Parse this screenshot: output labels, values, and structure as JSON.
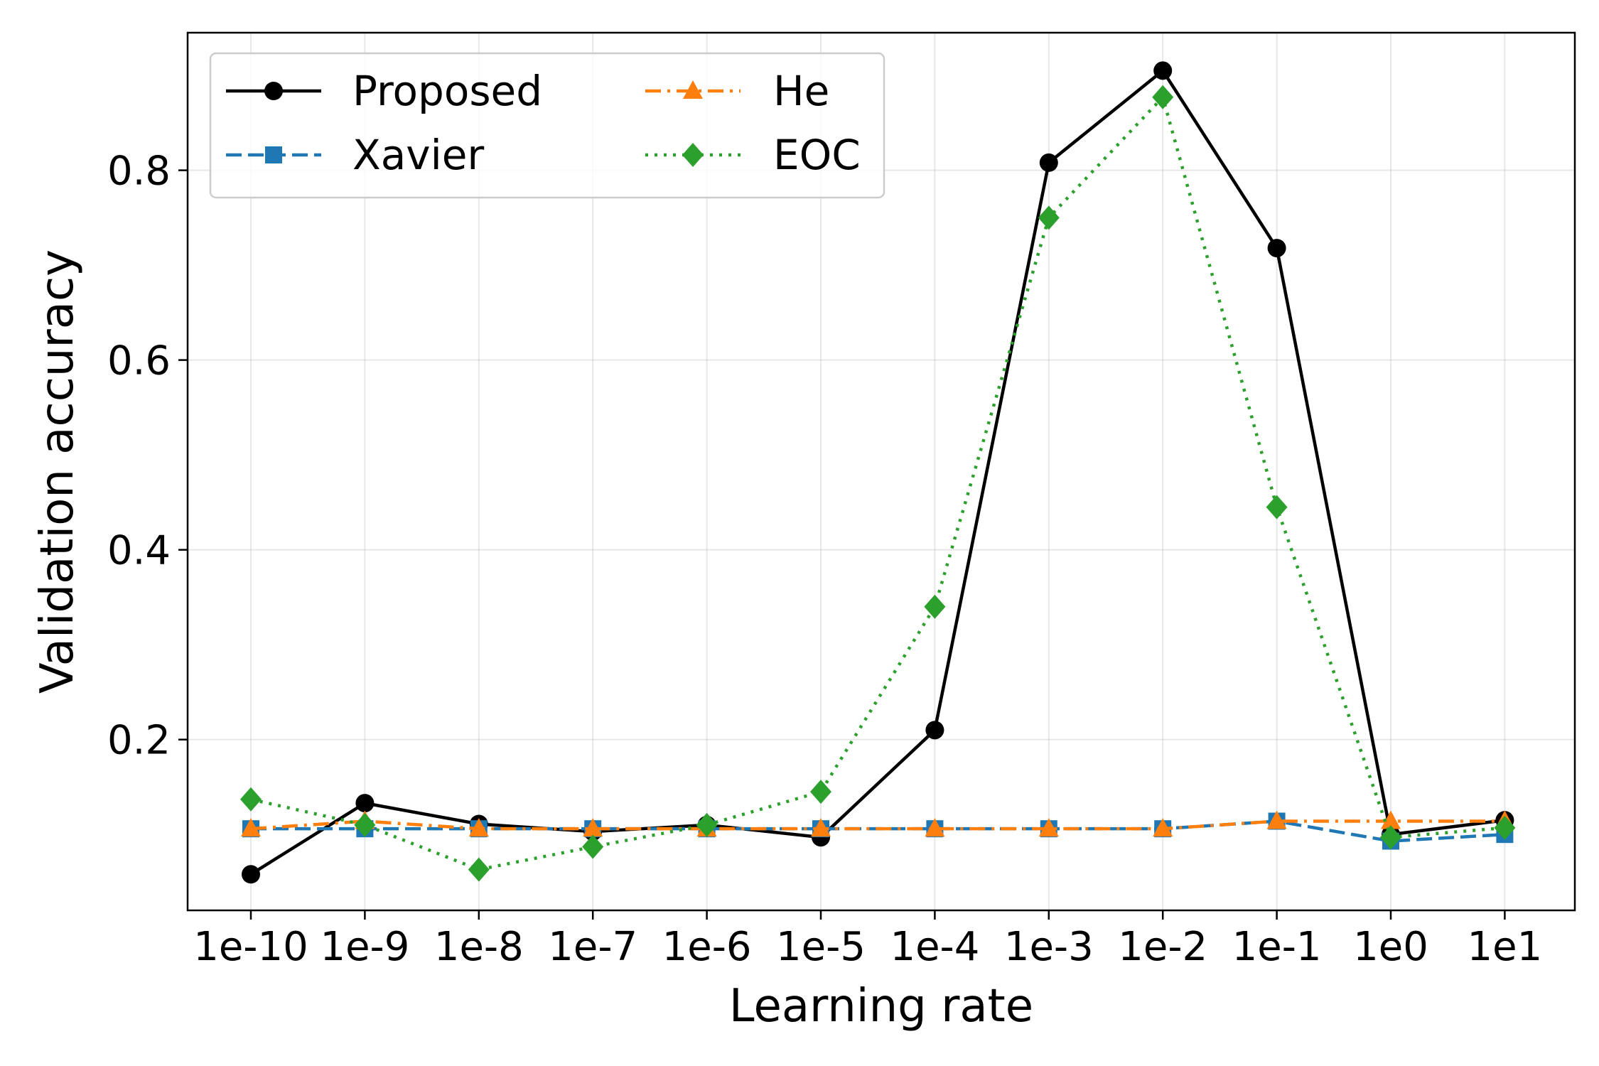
{
  "chart_data": {
    "type": "line",
    "xlabel": "Learning rate",
    "ylabel": "Validation accuracy",
    "categories": [
      "1e-10",
      "1e-9",
      "1e-8",
      "1e-7",
      "1e-6",
      "1e-5",
      "1e-4",
      "1e-3",
      "1e-2",
      "1e-1",
      "1e0",
      "1e1"
    ],
    "ylim": [
      0.02,
      0.945
    ],
    "yticks": [
      0.2,
      0.4,
      0.6,
      0.8
    ],
    "ytick_labels": [
      "0.2",
      "0.4",
      "0.6",
      "0.8"
    ],
    "grid": true,
    "legend": {
      "position": "top-left",
      "columns": 2
    },
    "series": [
      {
        "name": "Proposed",
        "color": "#000000",
        "marker": "circle",
        "dash": "solid",
        "values": [
          0.058,
          0.133,
          0.111,
          0.103,
          0.11,
          0.097,
          0.21,
          0.808,
          0.905,
          0.718,
          0.1,
          0.115
        ]
      },
      {
        "name": "Xavier",
        "color": "#1f77b4",
        "marker": "square",
        "dash": "dashed",
        "values": [
          0.106,
          0.106,
          0.106,
          0.106,
          0.106,
          0.106,
          0.106,
          0.106,
          0.106,
          0.114,
          0.093,
          0.1
        ]
      },
      {
        "name": "He",
        "color": "#ff7f0e",
        "marker": "triangle",
        "dash": "dashdot",
        "values": [
          0.106,
          0.114,
          0.106,
          0.106,
          0.106,
          0.106,
          0.106,
          0.106,
          0.106,
          0.114,
          0.114,
          0.114
        ]
      },
      {
        "name": "EOC",
        "color": "#2ca02c",
        "marker": "diamond",
        "dash": "dotted",
        "values": [
          0.137,
          0.11,
          0.063,
          0.087,
          0.11,
          0.145,
          0.34,
          0.75,
          0.877,
          0.445,
          0.097,
          0.107
        ]
      }
    ]
  }
}
